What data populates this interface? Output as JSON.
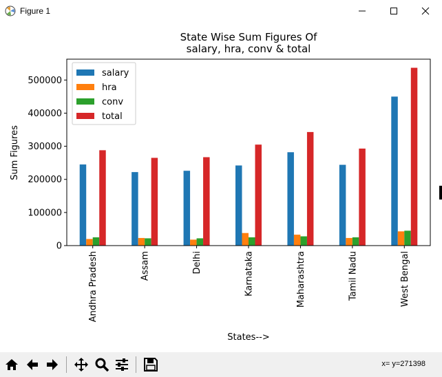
{
  "window": {
    "title": "Figure 1",
    "minimize_icon": "minimize-icon",
    "maximize_icon": "maximize-icon",
    "close_icon": "close-icon"
  },
  "toolbar": {
    "buttons": [
      "home-icon",
      "back-arrow-icon",
      "forward-arrow-icon",
      "pan-icon",
      "zoom-icon",
      "configure-subplots-icon",
      "save-icon"
    ],
    "coords_readout": "x= y=271398"
  },
  "chart_data": {
    "type": "bar",
    "title": "State Wise Sum Figures Of\nsalary, hra, conv & total",
    "title_lines": [
      "State Wise Sum Figures Of",
      "salary, hra, conv & total"
    ],
    "xlabel": "States-->",
    "ylabel": "Sum Figures",
    "categories": [
      "Andhra Pradesh",
      "Assam",
      "Delhi",
      "Karnataka",
      "Maharashtra",
      "Tamil Nadu",
      "West Bengal"
    ],
    "series": [
      {
        "name": "salary",
        "color": "#1f77b4",
        "values": [
          245000,
          222000,
          226000,
          242000,
          282000,
          244000,
          450000
        ]
      },
      {
        "name": "hra",
        "color": "#ff7f0e",
        "values": [
          20000,
          23000,
          18000,
          38000,
          33000,
          23000,
          43000
        ]
      },
      {
        "name": "conv",
        "color": "#2ca02c",
        "values": [
          25000,
          22000,
          22000,
          25000,
          28000,
          25000,
          45000
        ]
      },
      {
        "name": "total",
        "color": "#d62728",
        "values": [
          288000,
          265000,
          267000,
          305000,
          343000,
          293000,
          537000
        ]
      }
    ],
    "ylim": [
      0,
      563000
    ],
    "yticks": [
      0,
      100000,
      200000,
      300000,
      400000,
      500000
    ],
    "ytick_labels": [
      "0",
      "100000",
      "200000",
      "300000",
      "400000",
      "500000"
    ],
    "legend_placement": "upper-left",
    "grid": false
  }
}
